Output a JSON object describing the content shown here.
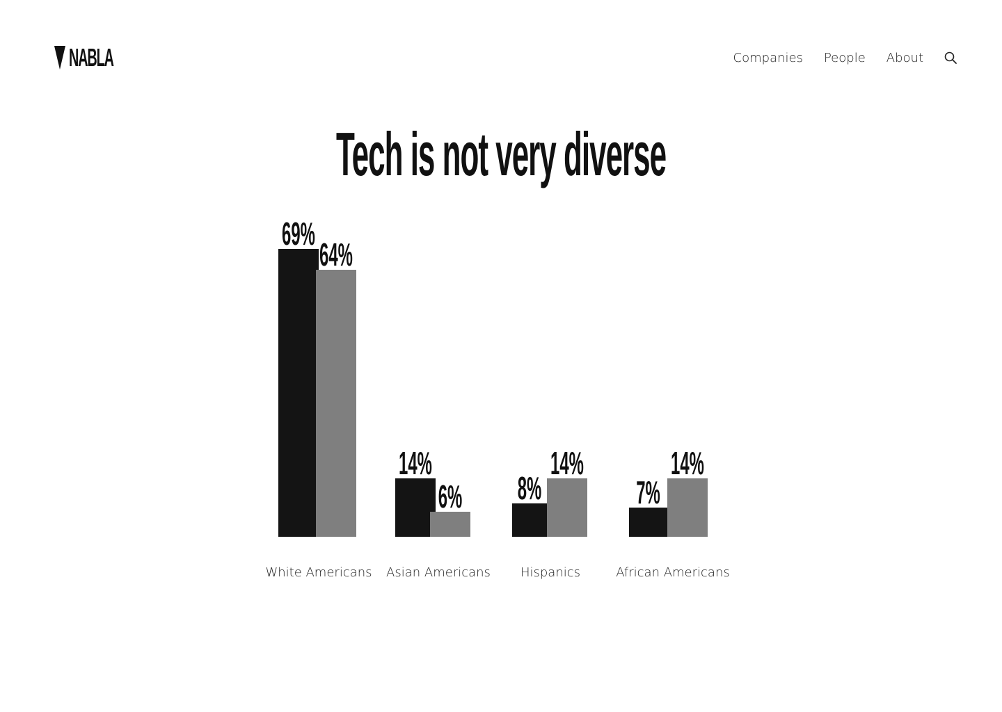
{
  "header": {
    "logo_text": "NABLA",
    "nav": [
      {
        "label": "Companies"
      },
      {
        "label": "People"
      },
      {
        "label": "About"
      }
    ],
    "search_icon": "search-icon"
  },
  "colors": {
    "primary_series": "#141414",
    "secondary_series": "#7f7f7f",
    "background": "#ffffff"
  },
  "chart_data": {
    "type": "bar",
    "title": "Tech is not very diverse",
    "xlabel": "",
    "ylabel": "",
    "ylim": [
      0,
      69
    ],
    "grid": false,
    "categories": [
      "White Americans",
      "Asian Americans",
      "Hispanics",
      "African Americans"
    ],
    "series": [
      {
        "values": [
          69,
          14,
          8,
          7
        ],
        "labels": [
          "69%",
          "14%",
          "8%",
          "7%"
        ],
        "color": "#141414"
      },
      {
        "values": [
          64,
          6,
          14,
          14
        ],
        "labels": [
          "64%",
          "6%",
          "14%",
          "14%"
        ],
        "color": "#7f7f7f"
      }
    ]
  }
}
